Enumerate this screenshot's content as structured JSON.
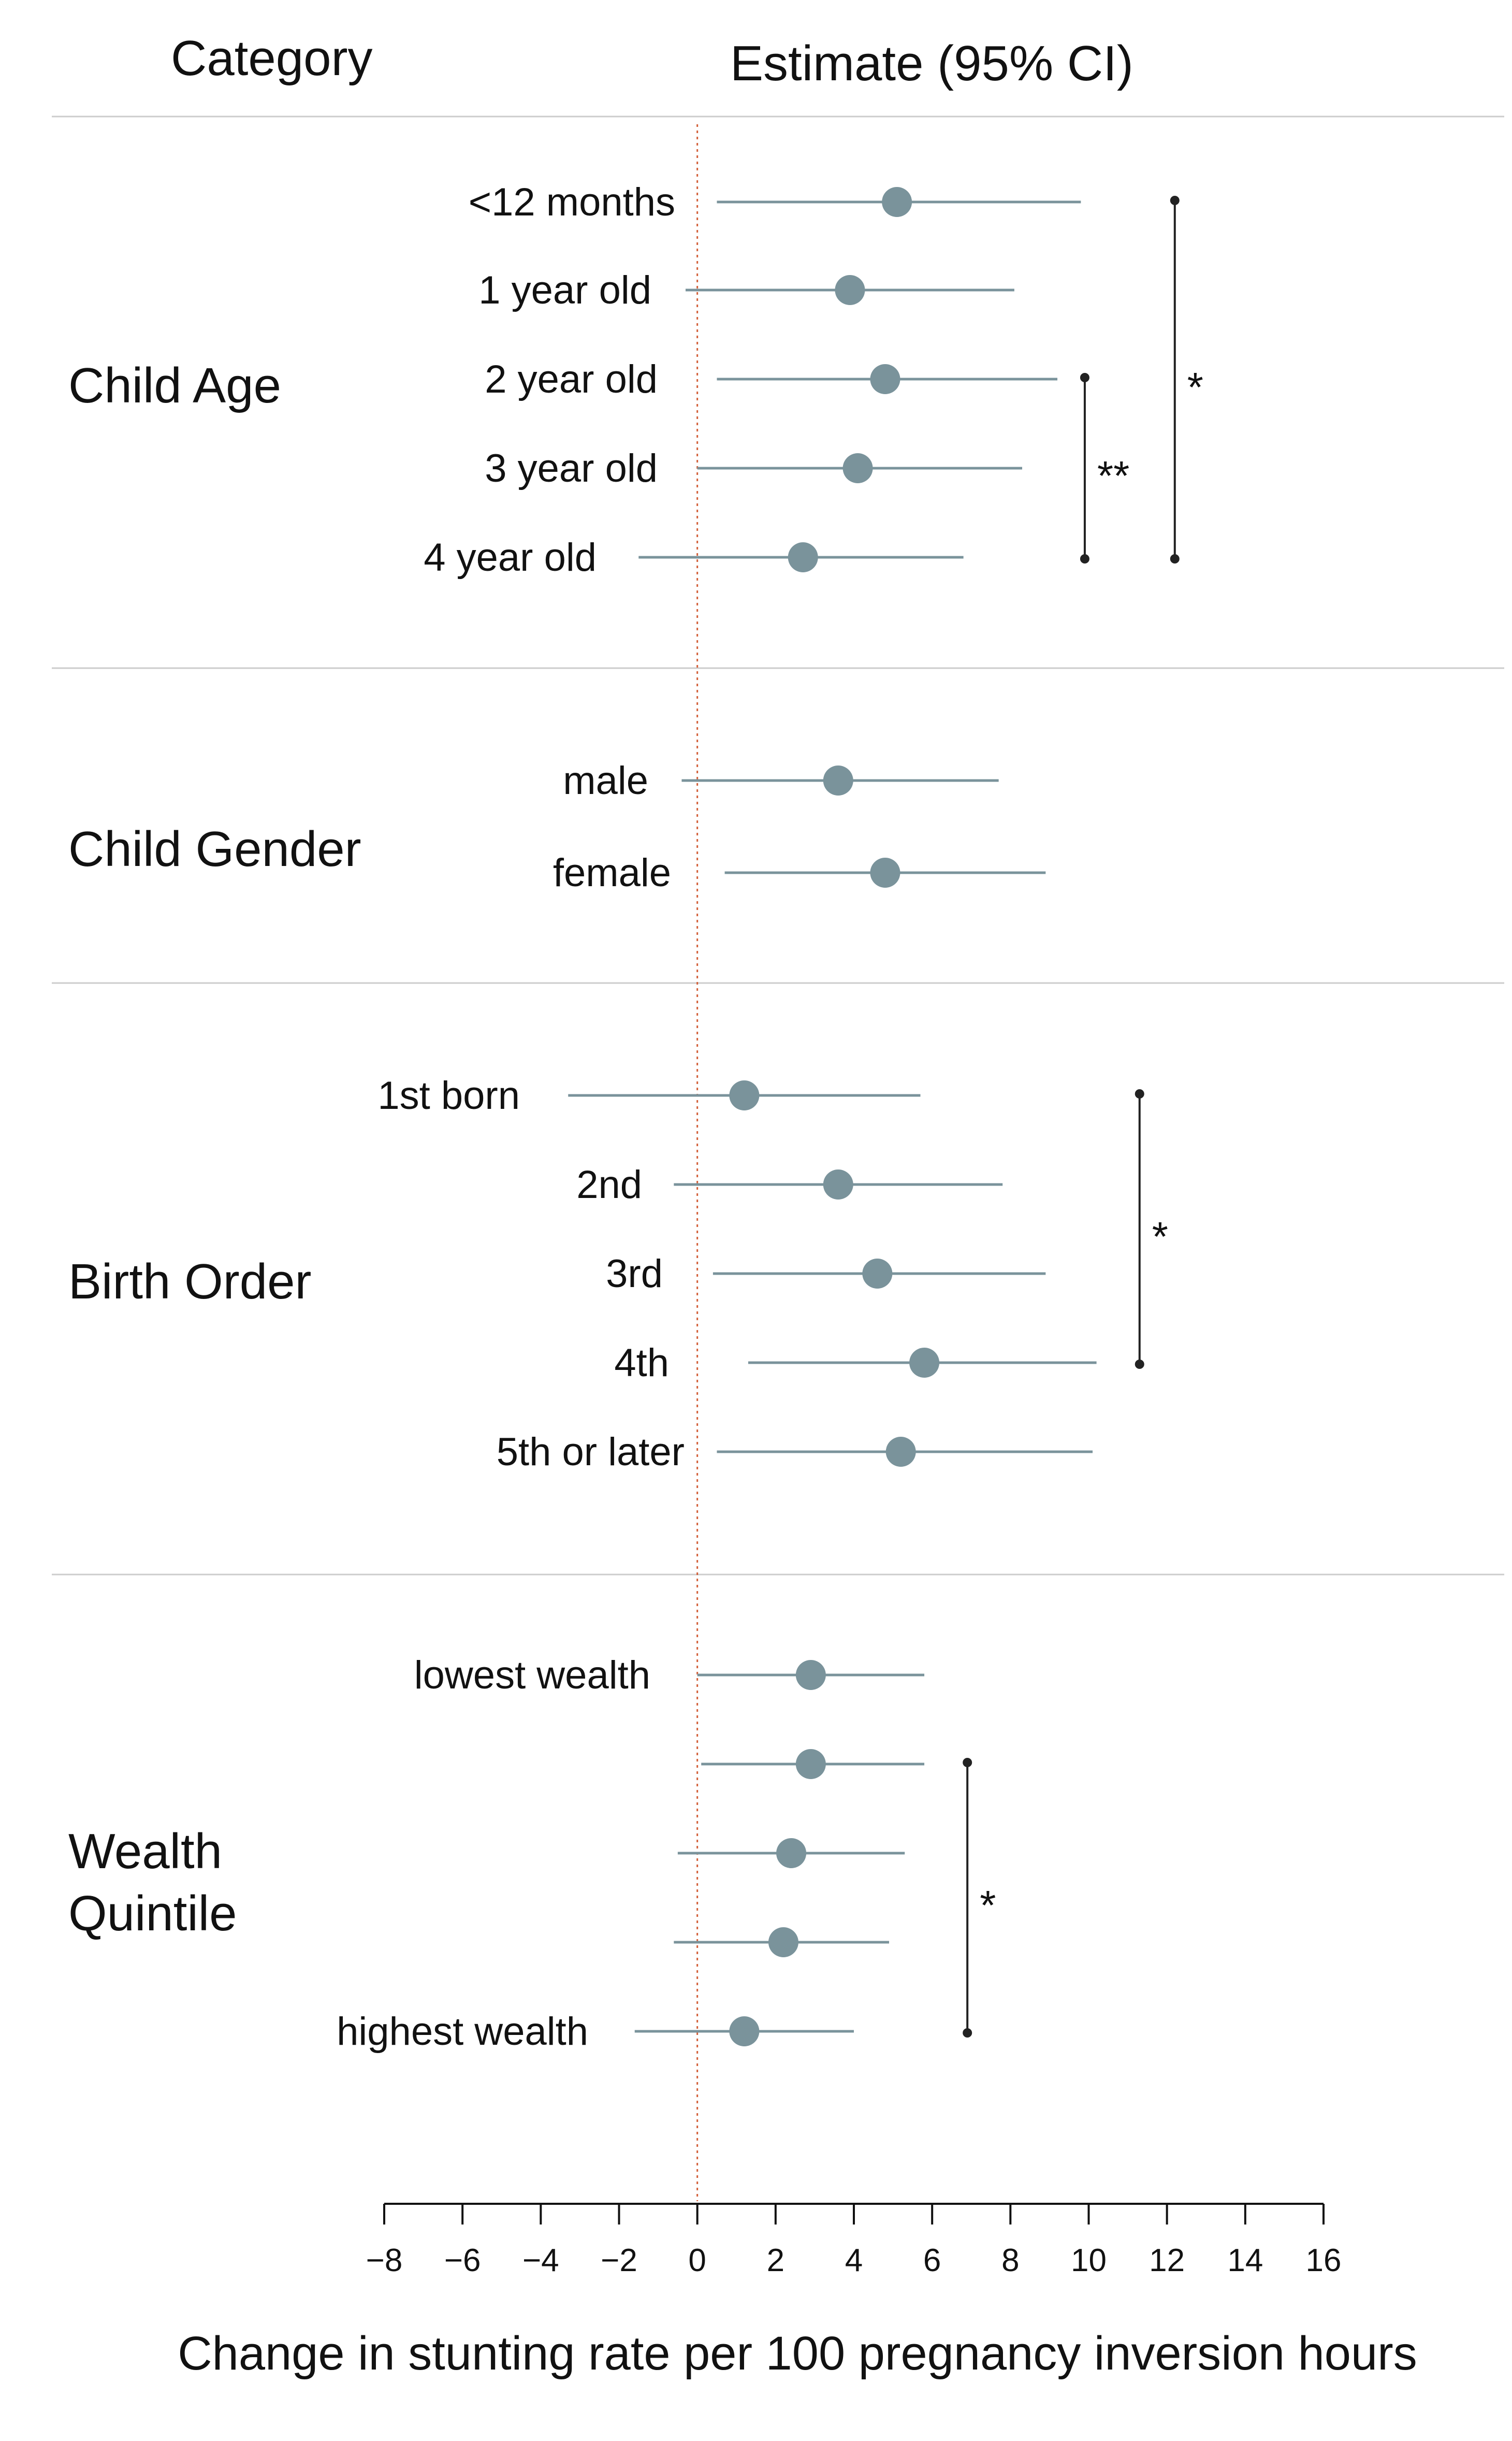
{
  "chart_data": {
    "type": "forest",
    "headers": {
      "category": "Category",
      "estimate": "Estimate (95% CI)"
    },
    "xlabel": "Change in stunting rate per 100 pregnancy inversion hours",
    "xlim": [
      -8,
      16
    ],
    "xticks": [
      -8,
      -6,
      -4,
      -2,
      0,
      2,
      4,
      6,
      8,
      10,
      12,
      14,
      16
    ],
    "xtick_labels": [
      "−8",
      "−6",
      "−4",
      "−2",
      "0",
      "2",
      "4",
      "6",
      "8",
      "10",
      "12",
      "14",
      "16"
    ],
    "reference_line": 0,
    "colors": {
      "point": "#7a939b",
      "ci": "#7a939b",
      "reference": "#d2603a",
      "bracket": "#222222",
      "divider": "#cccccc"
    },
    "groups": [
      {
        "name": "Child Age",
        "rows": [
          {
            "label": "<12 months",
            "estimate": 5.1,
            "lower": 0.5,
            "upper": 9.8
          },
          {
            "label": "1 year old",
            "estimate": 3.9,
            "lower": -0.3,
            "upper": 8.1
          },
          {
            "label": "2 year old",
            "estimate": 4.8,
            "lower": 0.5,
            "upper": 9.2
          },
          {
            "label": "3 year old",
            "estimate": 4.1,
            "lower": 0.0,
            "upper": 8.3
          },
          {
            "label": "4 year old",
            "estimate": 2.7,
            "lower": -1.5,
            "upper": 6.8
          }
        ],
        "brackets": [
          {
            "from": 2,
            "to": 4,
            "x": 9.9,
            "mark": "**"
          },
          {
            "from": 0,
            "to": 4,
            "x": 12.2,
            "mark": "*"
          }
        ]
      },
      {
        "name": "Child Gender",
        "rows": [
          {
            "label": "male",
            "estimate": 3.6,
            "lower": -0.4,
            "upper": 7.7
          },
          {
            "label": "female",
            "estimate": 4.8,
            "lower": 0.7,
            "upper": 8.9
          }
        ],
        "brackets": []
      },
      {
        "name": "Birth Order",
        "rows": [
          {
            "label": "1st born",
            "estimate": 1.2,
            "lower": -3.3,
            "upper": 5.7
          },
          {
            "label": "2nd",
            "estimate": 3.6,
            "lower": -0.6,
            "upper": 7.8
          },
          {
            "label": "3rd",
            "estimate": 4.6,
            "lower": 0.4,
            "upper": 8.9
          },
          {
            "label": "4th",
            "estimate": 5.8,
            "lower": 1.3,
            "upper": 10.2
          },
          {
            "label": "5th or later",
            "estimate": 5.2,
            "lower": 0.5,
            "upper": 10.1
          }
        ],
        "brackets": [
          {
            "from": 0,
            "to": 3,
            "x": 11.3,
            "mark": "*"
          }
        ]
      },
      {
        "name": "Wealth Quintile",
        "name_lines": [
          "Wealth",
          "Quintile"
        ],
        "rows": [
          {
            "label": "lowest wealth",
            "estimate": 2.9,
            "lower": 0.0,
            "upper": 5.8
          },
          {
            "label": "",
            "estimate": 2.9,
            "lower": 0.1,
            "upper": 5.8
          },
          {
            "label": "",
            "estimate": 2.4,
            "lower": -0.5,
            "upper": 5.3
          },
          {
            "label": "",
            "estimate": 2.2,
            "lower": -0.6,
            "upper": 4.9
          },
          {
            "label": "highest wealth",
            "estimate": 1.2,
            "lower": -1.6,
            "upper": 4.0
          }
        ],
        "brackets": [
          {
            "from": 1,
            "to": 4,
            "x": 6.9,
            "mark": "*"
          }
        ]
      }
    ]
  }
}
